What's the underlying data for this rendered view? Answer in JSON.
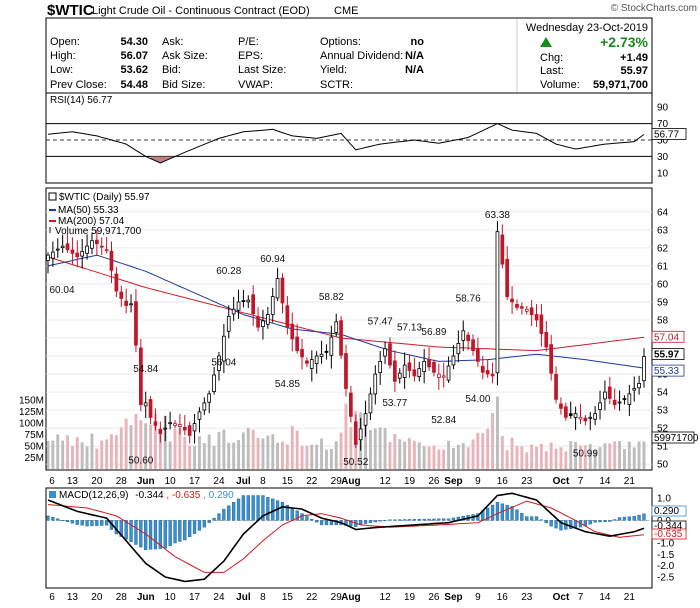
{
  "header": {
    "symbol": "$WTIC",
    "name": "Light Crude Oil - Continuous Contract (EOD)",
    "exchange": "CME",
    "watermark": "© StockCharts.com",
    "date": "Wednesday  23-Oct-2019",
    "change_pct": "+2.73%",
    "chg_label": "Chg:",
    "chg_value": "+1.49",
    "last_label": "Last:",
    "last_value": "55.97",
    "volume_label": "Volume:",
    "volume_value": "59,971,700",
    "up_color": "#1a8a1a",
    "quote": [
      {
        "label": "Open:",
        "value": "54.30"
      },
      {
        "label": "High:",
        "value": "56.07"
      },
      {
        "label": "Low:",
        "value": "53.62"
      },
      {
        "label": "Prev Close:",
        "value": "54.48"
      }
    ],
    "quote2": [
      "Ask:",
      "Ask Size:",
      "Bid:",
      "Bid Size:"
    ],
    "quote3": [
      "P/E:",
      "EPS:",
      "Last Size:",
      "VWAP:"
    ],
    "quote4": [
      {
        "label": "Options:",
        "value": "no"
      },
      {
        "label": "Annual Dividend:",
        "value": "N/A"
      },
      {
        "label": "Yield:",
        "value": "N/A"
      },
      {
        "label": "SCTR:",
        "value": ""
      }
    ]
  },
  "rsi": {
    "legend": "RSI(14) 56.77",
    "last_label": "56.77",
    "ylim": [
      0,
      100
    ],
    "ticks": [
      90,
      70,
      50,
      30,
      10
    ],
    "overbought": 70,
    "oversold": 30
  },
  "price": {
    "legend": "$WTIC (Daily) 55.97",
    "ma50_legend": "MA(50) 55.33",
    "ma200_legend": "MA(200) 57.04",
    "volume_legend": "Volume 59,971,700",
    "ylim": [
      49.9,
      65.1
    ],
    "ticks": [
      64,
      63,
      62,
      61,
      60,
      59,
      58,
      57,
      56,
      55,
      54,
      53,
      52,
      51,
      50
    ],
    "vol_ticks": [
      "150M",
      "125M",
      "100M",
      "75M",
      "50M",
      "25M"
    ],
    "vol_tick_values": [
      150,
      125,
      100,
      75,
      50,
      25
    ],
    "vol_max": 270,
    "last_tags": [
      {
        "text": "57.04",
        "price": 57.04,
        "color": "#c0172b"
      },
      {
        "text": "55.97",
        "price": 55.97,
        "color": "#000000"
      },
      {
        "text": "55.33",
        "price": 55.33,
        "color": "#1f3a9e"
      }
    ],
    "vol_tag": "59971700",
    "annotations": [
      {
        "text": "60.04",
        "i": 0,
        "price": 60.04,
        "dir": "below"
      },
      {
        "text": "54.84",
        "i": 20,
        "price": 54.84,
        "dir": "above"
      },
      {
        "text": "50.60",
        "i": 19,
        "price": 50.6,
        "dir": "below"
      },
      {
        "text": "60.28",
        "i": 37,
        "price": 60.28,
        "dir": "above"
      },
      {
        "text": "56.04",
        "i": 36,
        "price": 56.04,
        "dir": "below"
      },
      {
        "text": "60.94",
        "i": 46,
        "price": 60.94,
        "dir": "above"
      },
      {
        "text": "54.85",
        "i": 49,
        "price": 54.85,
        "dir": "below"
      },
      {
        "text": "58.82",
        "i": 58,
        "price": 58.82,
        "dir": "above"
      },
      {
        "text": "50.52",
        "i": 63,
        "price": 50.52,
        "dir": "below"
      },
      {
        "text": "57.47",
        "i": 68,
        "price": 57.47,
        "dir": "above"
      },
      {
        "text": "53.77",
        "i": 71,
        "price": 53.77,
        "dir": "below"
      },
      {
        "text": "57.13",
        "i": 74,
        "price": 57.13,
        "dir": "above"
      },
      {
        "text": "56.89",
        "i": 79,
        "price": 56.89,
        "dir": "above"
      },
      {
        "text": "52.84",
        "i": 81,
        "price": 52.84,
        "dir": "below"
      },
      {
        "text": "58.76",
        "i": 86,
        "price": 58.76,
        "dir": "above"
      },
      {
        "text": "54.00",
        "i": 88,
        "price": 54.0,
        "dir": "below"
      },
      {
        "text": "63.38",
        "i": 92,
        "price": 63.38,
        "dir": "above"
      },
      {
        "text": "50.99",
        "i": 110,
        "price": 50.99,
        "dir": "below"
      }
    ]
  },
  "macd": {
    "legend_prefix": "MACD(12,26,9)",
    "macd_value": "-0.344",
    "signal_value": "-0.635",
    "hist_value": "0.290",
    "macd_color": "#000000",
    "signal_color": "#d11a1a",
    "hist_color": "#3a8fcf",
    "ylim": [
      -2.9,
      1.3
    ],
    "ticks": [
      1.0,
      0.5,
      0.0,
      -0.5,
      -1.0,
      -1.5,
      -2.0,
      -2.5
    ],
    "tick_labels": [
      "1.0",
      "0.5",
      "0.0",
      "-0.5",
      "-1.0",
      "-1.5",
      "-2.0",
      "-2.5"
    ]
  },
  "xaxis": {
    "labels": [
      {
        "text": "6",
        "i": 0,
        "bold": false
      },
      {
        "text": "13",
        "i": 5,
        "bold": false
      },
      {
        "text": "20",
        "i": 10,
        "bold": false
      },
      {
        "text": "28",
        "i": 15,
        "bold": false
      },
      {
        "text": "Jun",
        "i": 20,
        "bold": true
      },
      {
        "text": "10",
        "i": 25,
        "bold": false
      },
      {
        "text": "17",
        "i": 30,
        "bold": false
      },
      {
        "text": "24",
        "i": 35,
        "bold": false
      },
      {
        "text": "Jul",
        "i": 40,
        "bold": true
      },
      {
        "text": "8",
        "i": 44,
        "bold": false
      },
      {
        "text": "15",
        "i": 49,
        "bold": false
      },
      {
        "text": "22",
        "i": 54,
        "bold": false
      },
      {
        "text": "29",
        "i": 59,
        "bold": false
      },
      {
        "text": "Aug",
        "i": 62,
        "bold": true
      },
      {
        "text": "12",
        "i": 69,
        "bold": false
      },
      {
        "text": "19",
        "i": 74,
        "bold": false
      },
      {
        "text": "26",
        "i": 79,
        "bold": false
      },
      {
        "text": "Sep",
        "i": 83,
        "bold": true
      },
      {
        "text": "9",
        "i": 88,
        "bold": false
      },
      {
        "text": "16",
        "i": 93,
        "bold": false
      },
      {
        "text": "23",
        "i": 98,
        "bold": false
      },
      {
        "text": "Oct",
        "i": 105,
        "bold": true
      },
      {
        "text": "7",
        "i": 109,
        "bold": false
      },
      {
        "text": "14",
        "i": 114,
        "bold": false
      },
      {
        "text": "21",
        "i": 119,
        "bold": false
      }
    ]
  },
  "chart_data": {
    "type": "candlestick",
    "title": "$WTIC Light Crude Oil - Continuous Contract (EOD), Daily",
    "x_range": "May 6 2019 – Oct 23 2019",
    "n_bars": 123,
    "close_anchors": [
      [
        0,
        61.6
      ],
      [
        3,
        62.1
      ],
      [
        6,
        61.5
      ],
      [
        9,
        62.4
      ],
      [
        12,
        61.9
      ],
      [
        14,
        59.6
      ],
      [
        16,
        58.8
      ],
      [
        17,
        58.9
      ],
      [
        18,
        56.6
      ],
      [
        19,
        53.3
      ],
      [
        20,
        53.4
      ],
      [
        21,
        52.6
      ],
      [
        23,
        51.7
      ],
      [
        25,
        52.3
      ],
      [
        27,
        52.2
      ],
      [
        29,
        51.6
      ],
      [
        31,
        52.9
      ],
      [
        33,
        53.9
      ],
      [
        35,
        56.0
      ],
      [
        37,
        58.2
      ],
      [
        39,
        59.0
      ],
      [
        41,
        59.1
      ],
      [
        43,
        57.6
      ],
      [
        45,
        58.3
      ],
      [
        47,
        60.3
      ],
      [
        49,
        57.6
      ],
      [
        51,
        56.3
      ],
      [
        53,
        55.6
      ],
      [
        55,
        56.0
      ],
      [
        57,
        56.2
      ],
      [
        59,
        57.9
      ],
      [
        61,
        54.2
      ],
      [
        63,
        51.1
      ],
      [
        65,
        52.8
      ],
      [
        67,
        55.0
      ],
      [
        69,
        56.4
      ],
      [
        71,
        54.6
      ],
      [
        73,
        55.5
      ],
      [
        75,
        54.9
      ],
      [
        77,
        55.7
      ],
      [
        79,
        55.1
      ],
      [
        81,
        54.9
      ],
      [
        83,
        56.0
      ],
      [
        85,
        57.4
      ],
      [
        87,
        56.3
      ],
      [
        89,
        55.1
      ],
      [
        91,
        54.9
      ],
      [
        92,
        62.9
      ],
      [
        94,
        59.3
      ],
      [
        96,
        58.7
      ],
      [
        98,
        58.6
      ],
      [
        100,
        58.0
      ],
      [
        102,
        56.5
      ],
      [
        104,
        53.6
      ],
      [
        106,
        52.6
      ],
      [
        108,
        52.8
      ],
      [
        110,
        52.4
      ],
      [
        112,
        52.8
      ],
      [
        114,
        54.0
      ],
      [
        116,
        53.3
      ],
      [
        118,
        53.6
      ],
      [
        120,
        54.2
      ],
      [
        121,
        54.48
      ],
      [
        122,
        55.97
      ]
    ],
    "ma50_anchors": [
      [
        0,
        61.0
      ],
      [
        10,
        61.6
      ],
      [
        20,
        60.7
      ],
      [
        30,
        59.5
      ],
      [
        40,
        58.3
      ],
      [
        50,
        57.5
      ],
      [
        60,
        57.2
      ],
      [
        70,
        56.3
      ],
      [
        80,
        55.7
      ],
      [
        90,
        55.8
      ],
      [
        100,
        56.1
      ],
      [
        110,
        55.8
      ],
      [
        122,
        55.33
      ]
    ],
    "ma200_anchors": [
      [
        0,
        61.5
      ],
      [
        20,
        59.8
      ],
      [
        40,
        58.4
      ],
      [
        60,
        57.0
      ],
      [
        80,
        56.5
      ],
      [
        100,
        56.3
      ],
      [
        122,
        57.04
      ]
    ],
    "rsi_anchors": [
      [
        0,
        57
      ],
      [
        5,
        60
      ],
      [
        10,
        55
      ],
      [
        16,
        45
      ],
      [
        20,
        30
      ],
      [
        23,
        22
      ],
      [
        28,
        35
      ],
      [
        35,
        52
      ],
      [
        40,
        60
      ],
      [
        46,
        63
      ],
      [
        50,
        55
      ],
      [
        55,
        52
      ],
      [
        60,
        58
      ],
      [
        63,
        38
      ],
      [
        68,
        45
      ],
      [
        75,
        50
      ],
      [
        80,
        46
      ],
      [
        86,
        53
      ],
      [
        92,
        70
      ],
      [
        95,
        62
      ],
      [
        100,
        58
      ],
      [
        104,
        45
      ],
      [
        108,
        39
      ],
      [
        114,
        45
      ],
      [
        120,
        48
      ],
      [
        122,
        56.77
      ]
    ],
    "macd_anchors": [
      [
        0,
        0.9
      ],
      [
        6,
        0.4
      ],
      [
        12,
        0.1
      ],
      [
        16,
        -0.9
      ],
      [
        20,
        -1.9
      ],
      [
        24,
        -2.5
      ],
      [
        28,
        -2.7
      ],
      [
        32,
        -2.6
      ],
      [
        36,
        -1.8
      ],
      [
        40,
        -0.6
      ],
      [
        44,
        0.2
      ],
      [
        48,
        0.6
      ],
      [
        52,
        0.5
      ],
      [
        56,
        0.1
      ],
      [
        60,
        -0.1
      ],
      [
        63,
        -0.4
      ],
      [
        68,
        -0.3
      ],
      [
        75,
        -0.2
      ],
      [
        82,
        -0.1
      ],
      [
        88,
        0.2
      ],
      [
        92,
        1.1
      ],
      [
        95,
        1.2
      ],
      [
        100,
        0.9
      ],
      [
        105,
        -0.1
      ],
      [
        110,
        -0.5
      ],
      [
        115,
        -0.7
      ],
      [
        120,
        -0.5
      ],
      [
        122,
        -0.344
      ]
    ],
    "signal_anchors": [
      [
        0,
        0.7
      ],
      [
        8,
        0.55
      ],
      [
        14,
        0.2
      ],
      [
        20,
        -0.6
      ],
      [
        26,
        -1.6
      ],
      [
        32,
        -2.3
      ],
      [
        36,
        -2.3
      ],
      [
        40,
        -1.7
      ],
      [
        44,
        -0.9
      ],
      [
        48,
        -0.2
      ],
      [
        52,
        0.2
      ],
      [
        56,
        0.3
      ],
      [
        60,
        0.1
      ],
      [
        64,
        -0.2
      ],
      [
        70,
        -0.3
      ],
      [
        80,
        -0.2
      ],
      [
        88,
        -0.1
      ],
      [
        93,
        0.4
      ],
      [
        98,
        0.85
      ],
      [
        103,
        0.55
      ],
      [
        108,
        0.0
      ],
      [
        112,
        -0.5
      ],
      [
        117,
        -0.75
      ],
      [
        122,
        -0.635
      ]
    ],
    "volume_anchors": [
      [
        0,
        70
      ],
      [
        10,
        60
      ],
      [
        17,
        95
      ],
      [
        20,
        130
      ],
      [
        25,
        85
      ],
      [
        30,
        70
      ],
      [
        35,
        65
      ],
      [
        40,
        70
      ],
      [
        47,
        65
      ],
      [
        50,
        75
      ],
      [
        58,
        55
      ],
      [
        61,
        110
      ],
      [
        63,
        150
      ],
      [
        66,
        85
      ],
      [
        72,
        55
      ],
      [
        78,
        55
      ],
      [
        84,
        50
      ],
      [
        90,
        70
      ],
      [
        92,
        130
      ],
      [
        94,
        55
      ],
      [
        100,
        45
      ],
      [
        104,
        60
      ],
      [
        110,
        45
      ],
      [
        116,
        50
      ],
      [
        122,
        60
      ]
    ]
  }
}
